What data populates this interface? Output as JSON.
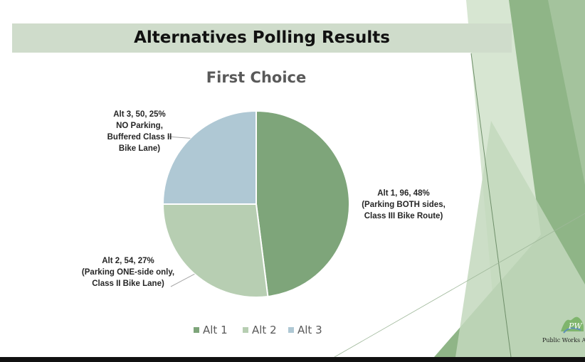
{
  "slide": {
    "title": "Alternatives Polling Results"
  },
  "colors": {
    "title_band": "#cfdccb",
    "alt1": "#7ea57a",
    "alt2": "#b7ceb2",
    "alt3": "#afc8d4",
    "deco_dark": "#8fb587",
    "deco_light": "#c3d8bd"
  },
  "chart_data": {
    "type": "pie",
    "title": "First Choice",
    "legend_position": "bottom",
    "slices": [
      {
        "name": "Alt 1",
        "value": 96,
        "percent": 48,
        "label_lines": [
          "Alt 1, 96, 48%",
          "(Parking BOTH sides,",
          "Class III Bike Route)"
        ]
      },
      {
        "name": "Alt 2",
        "value": 54,
        "percent": 27,
        "label_lines": [
          "Alt 2, 54, 27%",
          "(Parking ONE-side only,",
          "Class II Bike Lane)"
        ]
      },
      {
        "name": "Alt 3",
        "value": 50,
        "percent": 25,
        "label_lines": [
          "Alt 3, 50, 25%",
          "NO Parking,",
          "Buffered Class II",
          "Bike Lane)"
        ]
      }
    ]
  },
  "logo": {
    "icon": "public-works-logo-icon",
    "text": "Public Works A"
  }
}
